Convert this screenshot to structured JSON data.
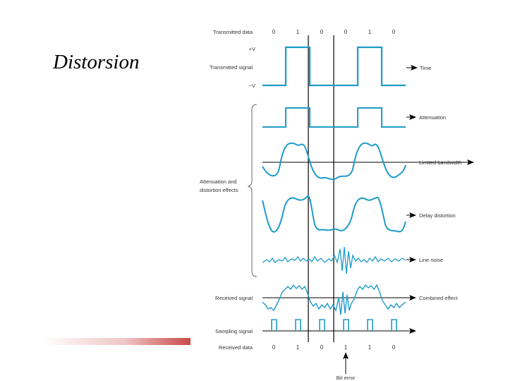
{
  "slide": {
    "title": "Distorsion",
    "accent_color": "#c94a4a"
  },
  "figure": {
    "signal_color": "#1e9bc8",
    "line_color": "#000000",
    "transmitted_data_label": "Transmitted data",
    "transmitted_bits": [
      "0",
      "1",
      "0",
      "0",
      "1",
      "0"
    ],
    "plus_v_label": "+V",
    "minus_v_label": "−V",
    "transmitted_signal_label": "Transmitted signal",
    "group_label_line1": "Attenuation and",
    "group_label_line2": "distortion effects",
    "received_signal_label": "Received signal",
    "sampling_signal_label": "Sampling signal",
    "received_data_label": "Received data",
    "received_bits": [
      "0",
      "1",
      "0",
      "1",
      "1",
      "0"
    ],
    "bit_error_label": "Bit error",
    "row_labels": {
      "time": "Time",
      "attenuation": "Attenuation",
      "limited_bandwidth": "Limited bandwidth",
      "delay_distortion": "Delay distortion",
      "line_noise": "Line noise",
      "combined_effect": "Combined effect"
    }
  }
}
